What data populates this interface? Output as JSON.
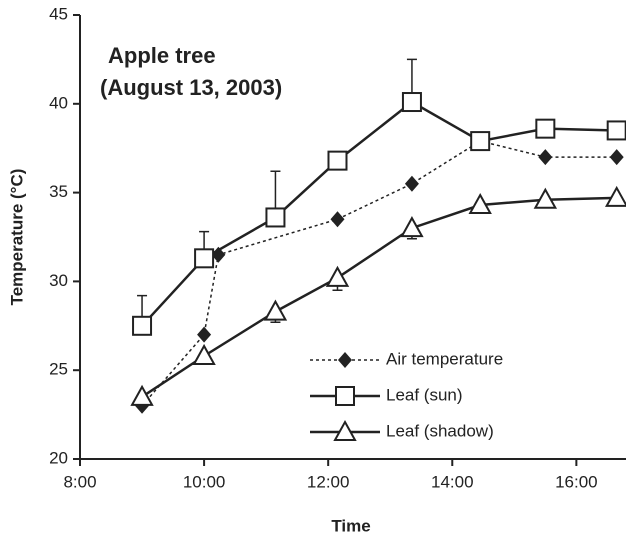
{
  "chart_data": {
    "type": "line",
    "title": [
      "Apple tree",
      "(August 13, 2003)"
    ],
    "xlabel": "Time",
    "ylabel": "Temperature (°C)",
    "xlim": [
      8,
      16.8
    ],
    "ylim": [
      20,
      45
    ],
    "xticks": [
      {
        "value": 8,
        "label": "8:00"
      },
      {
        "value": 10,
        "label": "10:00"
      },
      {
        "value": 12,
        "label": "12:00"
      },
      {
        "value": 14,
        "label": "14:00"
      },
      {
        "value": 16,
        "label": "16:00"
      }
    ],
    "yticks": [
      20,
      25,
      30,
      35,
      40,
      45
    ],
    "legend": "lower right",
    "series": [
      {
        "name": "Air temperature",
        "color": "#222222",
        "marker": "diamond",
        "dash": "dotted",
        "x": [
          9.0,
          10.0,
          10.23,
          12.15,
          13.35,
          14.45,
          15.5,
          16.65
        ],
        "values": [
          23.0,
          27.0,
          31.5,
          33.5,
          35.5,
          37.9,
          37.0,
          37.0
        ]
      },
      {
        "name": "Leaf (sun)",
        "color": "#222222",
        "marker": "square",
        "dash": "solid",
        "x": [
          9.0,
          10.0,
          11.15,
          12.15,
          13.35,
          14.45,
          15.5,
          16.65
        ],
        "values": [
          27.5,
          31.3,
          33.6,
          36.8,
          40.1,
          37.9,
          38.6,
          38.5
        ],
        "errors": [
          1.7,
          1.5,
          2.6,
          0.5,
          2.4,
          null,
          null,
          null
        ],
        "error_direction": "up"
      },
      {
        "name": "Leaf (shadow)",
        "color": "#222222",
        "marker": "triangle",
        "dash": "solid",
        "x": [
          9.0,
          10.0,
          11.15,
          12.15,
          13.35,
          14.45,
          15.5,
          16.65
        ],
        "values": [
          23.5,
          25.8,
          28.3,
          30.2,
          33.0,
          34.3,
          34.6,
          34.7
        ],
        "errors": [
          null,
          null,
          0.6,
          0.7,
          0.6,
          null,
          null,
          null
        ],
        "error_direction": "down"
      }
    ]
  }
}
